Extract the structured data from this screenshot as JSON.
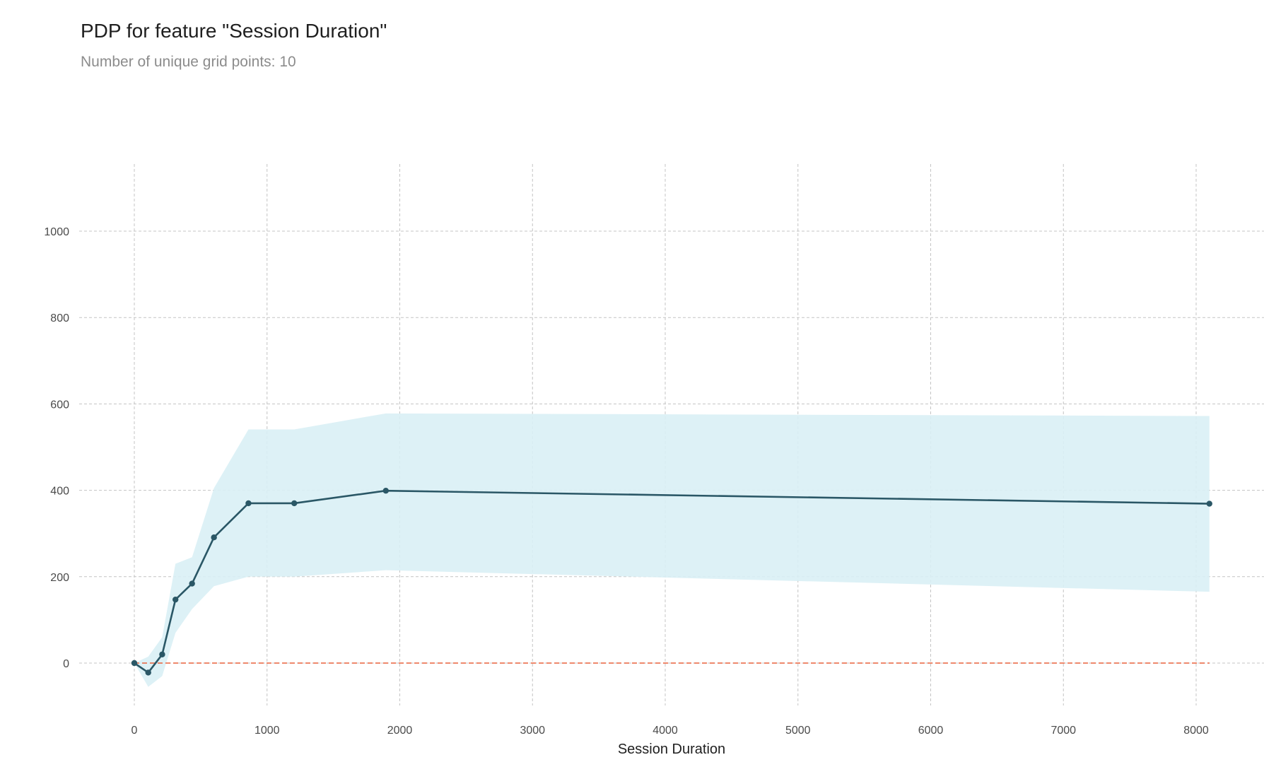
{
  "chart_data": {
    "type": "line",
    "title": "PDP for feature \"Session Duration\"",
    "subtitle": "Number of unique grid points: 10",
    "xlabel": "Session Duration",
    "ylabel": "",
    "xlim": [
      -600,
      8500
    ],
    "ylim": [
      -130,
      1150
    ],
    "x_ticks": [
      0,
      1000,
      2000,
      3000,
      4000,
      5000,
      6000,
      7000,
      8000
    ],
    "y_ticks": [
      0,
      200,
      400,
      600,
      800,
      1000
    ],
    "grid": true,
    "series": [
      {
        "x": [
          0,
          105,
          210,
          310,
          435,
          600,
          860,
          1205,
          1895,
          8100
        ],
        "values": [
          0,
          -22,
          20,
          147,
          184,
          291,
          370,
          370,
          399,
          369
        ],
        "upper": [
          0,
          15,
          60,
          230,
          245,
          405,
          541,
          541,
          578,
          572
        ],
        "lower": [
          0,
          -55,
          -30,
          70,
          125,
          178,
          200,
          200,
          215,
          165
        ]
      }
    ],
    "reference_line": {
      "y": 0,
      "color": "#e8613c"
    },
    "colors": {
      "line": "#2a5766",
      "band": "#d9f0f5",
      "marker": "#2a5766"
    }
  }
}
